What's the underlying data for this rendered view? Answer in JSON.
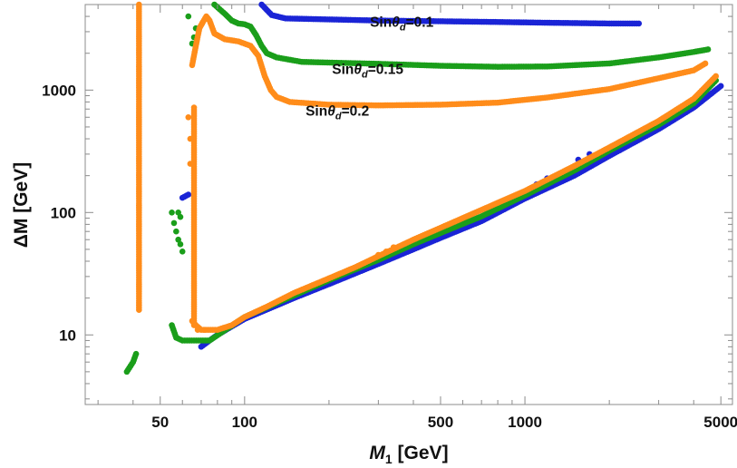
{
  "chart_data": {
    "type": "scatter",
    "title": "",
    "xlabel": {
      "main": "M",
      "sub": "1",
      "unit": " [GeV]"
    },
    "ylabel": "ΔM [GeV]",
    "xscale": "log",
    "yscale": "log",
    "xlim": [
      27,
      5500
    ],
    "ylim": [
      2.7,
      5000
    ],
    "grid": false,
    "x_ticks": [
      {
        "value": 50,
        "label": "50"
      },
      {
        "value": 100,
        "label": "100"
      },
      {
        "value": 500,
        "label": "500"
      },
      {
        "value": 1000,
        "label": "1000"
      },
      {
        "value": 5000,
        "label": "5000"
      }
    ],
    "y_ticks": [
      {
        "value": 10,
        "label": "10"
      },
      {
        "value": 100,
        "label": "100"
      },
      {
        "value": 1000,
        "label": "1000"
      }
    ],
    "colors": {
      "s01": "#1a24d6",
      "s015": "#1a9e1a",
      "s02": "#ff8c1a"
    },
    "annotations": [
      {
        "prefix": "Sin",
        "theta": "θ",
        "sub": "d",
        "suffix": "=0.1",
        "x": 280,
        "y": 3300
      },
      {
        "prefix": "Sin",
        "theta": "θ",
        "sub": "d",
        "suffix": "=0.15",
        "x": 205,
        "y": 1360
      },
      {
        "prefix": "Sin",
        "theta": "θ",
        "sub": "d",
        "suffix": "=0.2",
        "x": 165,
        "y": 620
      }
    ],
    "series": [
      {
        "name": "Sinθd=0.1",
        "color": "#1a24d6",
        "segments": [
          [
            [
              115,
              5000
            ],
            [
              125,
              4100
            ],
            [
              140,
              3850
            ],
            [
              300,
              3700
            ],
            [
              500,
              3650
            ],
            [
              800,
              3600
            ],
            [
              1200,
              3550
            ],
            [
              2000,
              3500
            ],
            [
              2550,
              3500
            ]
          ],
          [
            [
              60,
              132
            ],
            [
              63,
              140
            ]
          ],
          [
            [
              70,
              8
            ],
            [
              75,
              9
            ],
            [
              80,
              10
            ],
            [
              100,
              13.5
            ],
            [
              150,
              20
            ],
            [
              200,
              26
            ],
            [
              300,
              38
            ],
            [
              400,
              50
            ],
            [
              500,
              62
            ],
            [
              700,
              85
            ],
            [
              1000,
              130
            ],
            [
              1500,
              200
            ],
            [
              2000,
              290
            ],
            [
              3000,
              480
            ],
            [
              4000,
              720
            ],
            [
              5000,
              1080
            ]
          ]
        ],
        "points": [
          [
            1100,
            170
          ],
          [
            1200,
            190
          ],
          [
            1550,
            270
          ],
          [
            1700,
            300
          ],
          [
            2050,
            330
          ]
        ]
      },
      {
        "name": "Sinθd=0.15",
        "color": "#1a9e1a",
        "segments": [
          [
            [
              78,
              5000
            ],
            [
              85,
              4200
            ],
            [
              90,
              3700
            ],
            [
              95,
              3500
            ],
            [
              100,
              3450
            ],
            [
              105,
              3300
            ],
            [
              110,
              2800
            ],
            [
              115,
              2300
            ],
            [
              120,
              2000
            ],
            [
              130,
              1850
            ],
            [
              160,
              1700
            ],
            [
              300,
              1640
            ],
            [
              500,
              1580
            ],
            [
              800,
              1550
            ],
            [
              1200,
              1560
            ],
            [
              2000,
              1650
            ],
            [
              3000,
              1850
            ],
            [
              4000,
              2050
            ],
            [
              4500,
              2150
            ]
          ],
          [
            [
              38,
              5
            ],
            [
              40,
              6
            ],
            [
              41,
              7
            ]
          ],
          [
            [
              55,
              12
            ],
            [
              57,
              9.5
            ],
            [
              60,
              9
            ],
            [
              66,
              9
            ],
            [
              75,
              9
            ],
            [
              100,
              14
            ],
            [
              150,
              21
            ],
            [
              200,
              28
            ],
            [
              300,
              41
            ],
            [
              400,
              55
            ],
            [
              500,
              68
            ],
            [
              700,
              93
            ],
            [
              1000,
              138
            ],
            [
              1500,
              220
            ],
            [
              2000,
              320
            ],
            [
              3000,
              520
            ],
            [
              4000,
              780
            ],
            [
              4800,
              1200
            ]
          ]
        ],
        "points": [
          [
            63,
            4000
          ],
          [
            55,
            100
          ],
          [
            56,
            82
          ],
          [
            57,
            70
          ],
          [
            58,
            60
          ],
          [
            59,
            55
          ],
          [
            60,
            48
          ],
          [
            59,
            92
          ],
          [
            58,
            100
          ],
          [
            65,
            2400
          ],
          [
            66,
            2700
          ],
          [
            67,
            3200
          ]
        ]
      },
      {
        "name": "Sinθd=0.2",
        "color": "#ff8c1a",
        "segments": [
          [
            [
              42,
              5000
            ],
            [
              42,
              3000
            ],
            [
              42,
              1000
            ],
            [
              42,
              300
            ],
            [
              42,
              100
            ],
            [
              42,
              40
            ],
            [
              42,
              16
            ]
          ],
          [
            [
              66,
              12
            ],
            [
              66,
              30
            ],
            [
              66,
              80
            ],
            [
              66,
              200
            ],
            [
              66,
              500
            ],
            [
              66,
              720
            ]
          ],
          [
            [
              65,
              1600
            ],
            [
              67,
              2300
            ],
            [
              69,
              3200
            ],
            [
              71,
              3600
            ],
            [
              73,
              4000
            ],
            [
              75,
              3700
            ],
            [
              78,
              2900
            ],
            [
              85,
              2600
            ],
            [
              95,
              2500
            ],
            [
              105,
              2300
            ],
            [
              112,
              1900
            ],
            [
              118,
              1300
            ],
            [
              124,
              1000
            ],
            [
              130,
              880
            ],
            [
              145,
              800
            ],
            [
              200,
              760
            ],
            [
              300,
              750
            ],
            [
              500,
              760
            ],
            [
              800,
              790
            ],
            [
              1200,
              870
            ],
            [
              2000,
              1020
            ],
            [
              3000,
              1250
            ],
            [
              4000,
              1450
            ],
            [
              4400,
              1650
            ]
          ],
          [
            [
              65,
              13
            ],
            [
              67,
              12
            ],
            [
              70,
              11
            ],
            [
              80,
              11
            ],
            [
              90,
              12
            ],
            [
              100,
              14
            ],
            [
              120,
              17
            ],
            [
              150,
              22
            ],
            [
              200,
              29
            ],
            [
              250,
              36
            ],
            [
              300,
              44
            ],
            [
              400,
              60
            ],
            [
              500,
              75
            ],
            [
              600,
              90
            ],
            [
              700,
              105
            ],
            [
              800,
              120
            ],
            [
              1000,
              150
            ],
            [
              1500,
              240
            ],
            [
              2000,
              340
            ],
            [
              3000,
              560
            ],
            [
              4000,
              850
            ],
            [
              4800,
              1300
            ]
          ]
        ],
        "points": [
          [
            64,
            400
          ],
          [
            63,
            600
          ],
          [
            64,
            250
          ],
          [
            68,
            11
          ],
          [
            72,
            11
          ],
          [
            300,
            45
          ],
          [
            320,
            48
          ],
          [
            340,
            52
          ]
        ]
      }
    ]
  }
}
